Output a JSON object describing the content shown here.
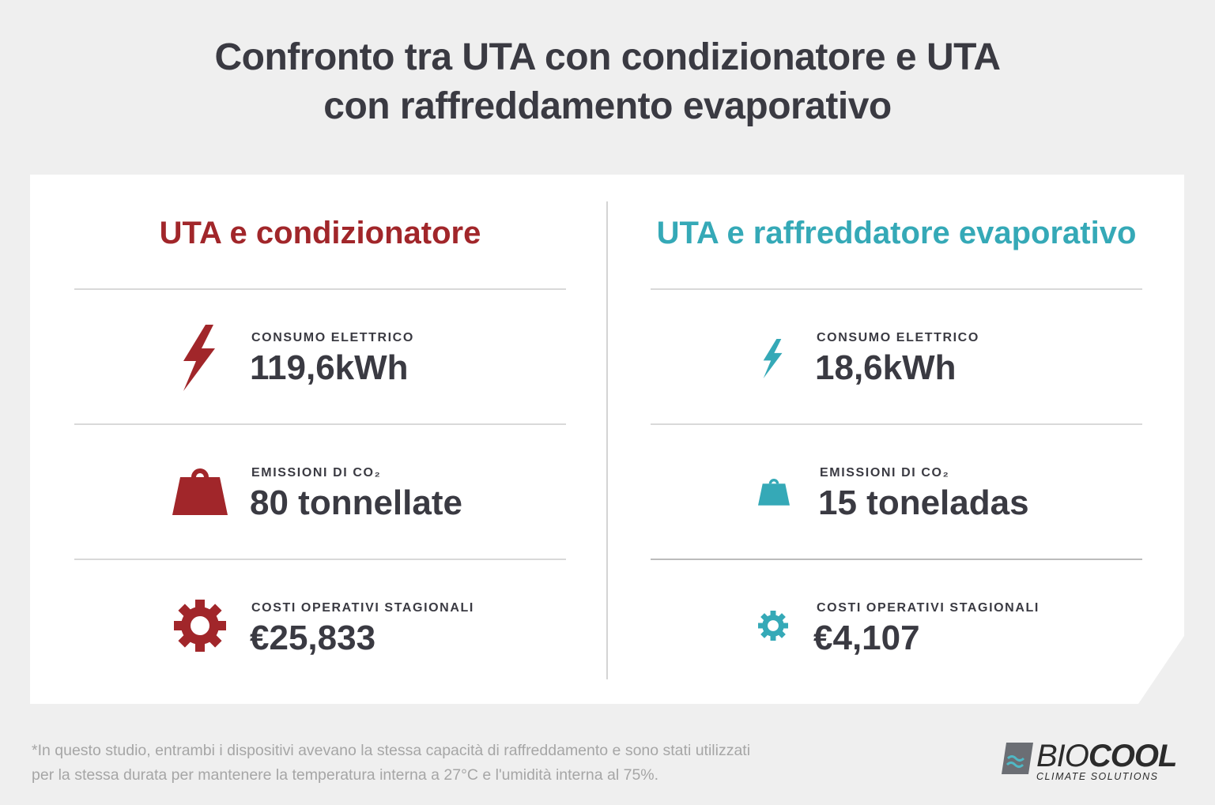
{
  "title": {
    "line1": "Confronto tra UTA con condizionatore e UTA",
    "line2": "con raffreddamento evaporativo"
  },
  "colors": {
    "left_accent": "#a1262a",
    "right_accent": "#35a9b7",
    "text": "#3a3a42"
  },
  "left": {
    "heading": "UTA e condizionatore",
    "metrics": [
      {
        "icon": "lightning-bolt-icon",
        "label": "CONSUMO ELETTRICO",
        "value": "119,6kWh"
      },
      {
        "icon": "weight-icon",
        "label": "EMISSIONI DI CO₂",
        "value": "80 tonnellate"
      },
      {
        "icon": "gear-icon",
        "label": "COSTI OPERATIVI STAGIONALI",
        "value": "€25,833"
      }
    ]
  },
  "right": {
    "heading": "UTA e raffreddatore evaporativo",
    "metrics": [
      {
        "icon": "lightning-bolt-icon",
        "label": "CONSUMO ELETTRICO",
        "value": "18,6kWh"
      },
      {
        "icon": "weight-icon",
        "label": "EMISSIONI DI CO₂",
        "value": "15 toneladas"
      },
      {
        "icon": "gear-icon",
        "label": "COSTI OPERATIVI STAGIONALI",
        "value": "€4,107"
      }
    ]
  },
  "footnote": {
    "line1": "*In questo studio, entrambi i dispositivi avevano la stessa capacità di raffreddamento e sono stati utilizzati",
    "line2": "per la stessa durata per mantenere la temperatura interna a 27°C e l'umidità interna al 75%."
  },
  "brand": {
    "name_light": "BIO",
    "name_bold": "COOL",
    "tagline": "CLIMATE SOLUTIONS"
  }
}
